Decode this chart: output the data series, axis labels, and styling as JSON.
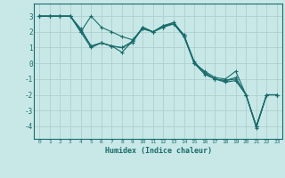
{
  "xlabel": "Humidex (Indice chaleur)",
  "ylabel": "",
  "background_color": "#c8e8e8",
  "grid_color": "#afd0d0",
  "line_color": "#1a6b6b",
  "xlim": [
    -0.5,
    23.5
  ],
  "ylim": [
    -4.8,
    3.8
  ],
  "yticks": [
    3,
    2,
    1,
    0,
    -1,
    -2,
    -3,
    -4
  ],
  "xticks": [
    0,
    1,
    2,
    3,
    4,
    5,
    6,
    7,
    8,
    9,
    10,
    11,
    12,
    13,
    14,
    15,
    16,
    17,
    18,
    19,
    20,
    21,
    22,
    23
  ],
  "series": [
    [
      3.0,
      3.0,
      3.0,
      3.0,
      2.2,
      1.1,
      1.3,
      1.1,
      0.7,
      1.4,
      2.3,
      2.0,
      2.3,
      2.5,
      1.7,
      0.0,
      -0.7,
      -1.0,
      -1.2,
      -1.1,
      -2.0,
      -4.1,
      -2.0,
      -2.0
    ],
    [
      3.0,
      3.0,
      3.0,
      3.0,
      2.1,
      1.1,
      1.3,
      1.1,
      1.0,
      1.4,
      2.2,
      2.0,
      2.4,
      2.6,
      1.8,
      0.1,
      -0.6,
      -1.0,
      -1.1,
      -1.0,
      -2.0,
      -4.0,
      -2.0,
      -2.0
    ],
    [
      3.0,
      3.0,
      3.0,
      3.0,
      2.0,
      3.0,
      2.3,
      2.0,
      1.7,
      1.5,
      2.2,
      2.0,
      2.3,
      2.6,
      1.7,
      0.0,
      -0.5,
      -0.9,
      -1.0,
      -0.5,
      -2.0,
      -4.0,
      -2.0,
      -2.0
    ],
    [
      3.0,
      3.0,
      3.0,
      3.0,
      2.0,
      1.0,
      1.3,
      1.1,
      1.0,
      1.3,
      2.3,
      2.0,
      2.4,
      2.5,
      1.8,
      0.0,
      -0.6,
      -1.0,
      -1.1,
      -0.9,
      -2.0,
      -4.0,
      -2.0,
      -2.0
    ]
  ],
  "marker": "+",
  "markersize": 3,
  "linewidth": 0.8
}
